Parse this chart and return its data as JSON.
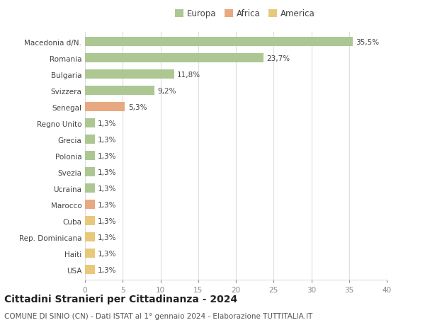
{
  "categories": [
    "Macedonia d/N.",
    "Romania",
    "Bulgaria",
    "Svizzera",
    "Senegal",
    "Regno Unito",
    "Grecia",
    "Polonia",
    "Svezia",
    "Ucraina",
    "Marocco",
    "Cuba",
    "Rep. Dominicana",
    "Haiti",
    "USA"
  ],
  "values": [
    35.5,
    23.7,
    11.8,
    9.2,
    5.3,
    1.3,
    1.3,
    1.3,
    1.3,
    1.3,
    1.3,
    1.3,
    1.3,
    1.3,
    1.3
  ],
  "labels": [
    "35,5%",
    "23,7%",
    "11,8%",
    "9,2%",
    "5,3%",
    "1,3%",
    "1,3%",
    "1,3%",
    "1,3%",
    "1,3%",
    "1,3%",
    "1,3%",
    "1,3%",
    "1,3%",
    "1,3%"
  ],
  "colors": [
    "#adc793",
    "#adc793",
    "#adc793",
    "#adc793",
    "#e8a882",
    "#adc793",
    "#adc793",
    "#adc793",
    "#adc793",
    "#adc793",
    "#e8a882",
    "#e8c87a",
    "#e8c87a",
    "#e8c87a",
    "#e8c87a"
  ],
  "legend_labels": [
    "Europa",
    "Africa",
    "America"
  ],
  "legend_colors": [
    "#adc793",
    "#e8a882",
    "#e8c87a"
  ],
  "title": "Cittadini Stranieri per Cittadinanza - 2024",
  "subtitle": "COMUNE DI SINIO (CN) - Dati ISTAT al 1° gennaio 2024 - Elaborazione TUTTITALIA.IT",
  "xlim": [
    0,
    40
  ],
  "xticks": [
    0,
    5,
    10,
    15,
    20,
    25,
    30,
    35,
    40
  ],
  "background_color": "#ffffff",
  "grid_color": "#dddddd",
  "bar_height": 0.55,
  "title_fontsize": 10,
  "subtitle_fontsize": 7.5,
  "tick_fontsize": 7.5,
  "label_fontsize": 7.5,
  "legend_fontsize": 8.5
}
